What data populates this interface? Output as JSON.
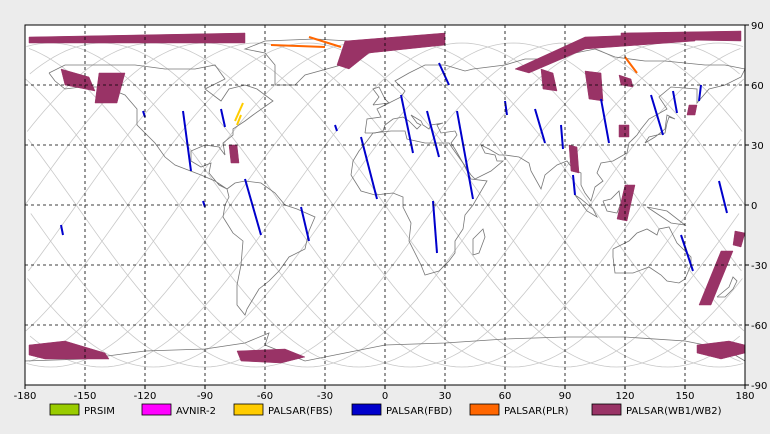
{
  "map": {
    "lon_ticks": [
      "-180",
      "-150",
      "-120",
      "-90",
      "-60",
      "-30",
      "0",
      "30",
      "60",
      "90",
      "120",
      "150",
      "180"
    ],
    "lat_ticks": [
      "90",
      "60",
      "30",
      "0",
      "-30",
      "-60",
      "-90"
    ],
    "background": "#ececec",
    "plot_background": "#ffffff",
    "grid_style": "dashed"
  },
  "legend": [
    {
      "label": "PRSIM",
      "color": "#99cc00"
    },
    {
      "label": "AVNIR-2",
      "color": "#ff00ff"
    },
    {
      "label": "PALSAR(FBS)",
      "color": "#ffcc00"
    },
    {
      "label": "PALSAR(FBD)",
      "color": "#0000cc"
    },
    {
      "label": "PALSAR(PLR)",
      "color": "#ff6600"
    },
    {
      "label": "PALSAR(WB1/WB2)",
      "color": "#993366"
    }
  ],
  "chart_data": {
    "type": "map",
    "x_range": [
      -180,
      180
    ],
    "y_range": [
      -90,
      90
    ],
    "grid": true,
    "footprints": [
      {
        "mode": "PALSAR(WB1/WB2)",
        "points": [
          [
            -178,
            84
          ],
          [
            -70,
            86
          ],
          [
            -70,
            81
          ],
          [
            -178,
            81
          ]
        ]
      },
      {
        "mode": "PALSAR(WB1/WB2)",
        "points": [
          [
            -162,
            68
          ],
          [
            -148,
            64
          ],
          [
            -145,
            57
          ],
          [
            -160,
            60
          ]
        ]
      },
      {
        "mode": "PALSAR(WB1/WB2)",
        "points": [
          [
            -143,
            66
          ],
          [
            -130,
            66
          ],
          [
            -134,
            51
          ],
          [
            -145,
            51
          ]
        ]
      },
      {
        "mode": "PALSAR(WB1/WB2)",
        "points": [
          [
            -20,
            82
          ],
          [
            30,
            86
          ],
          [
            30,
            80
          ],
          [
            -8,
            76
          ],
          [
            -18,
            68
          ],
          [
            -24,
            70
          ]
        ]
      },
      {
        "mode": "PALSAR(WB1/WB2)",
        "points": [
          [
            65,
            68
          ],
          [
            100,
            84
          ],
          [
            155,
            86
          ],
          [
            155,
            82
          ],
          [
            100,
            78
          ],
          [
            72,
            66
          ]
        ]
      },
      {
        "mode": "PALSAR(WB1/WB2)",
        "points": [
          [
            118,
            86
          ],
          [
            178,
            87
          ],
          [
            178,
            82
          ],
          [
            118,
            83
          ]
        ]
      },
      {
        "mode": "PALSAR(WB1/WB2)",
        "points": [
          [
            78,
            68
          ],
          [
            84,
            66
          ],
          [
            86,
            57
          ],
          [
            79,
            58
          ]
        ]
      },
      {
        "mode": "PALSAR(WB1/WB2)",
        "points": [
          [
            100,
            67
          ],
          [
            108,
            66
          ],
          [
            109,
            52
          ],
          [
            102,
            53
          ]
        ]
      },
      {
        "mode": "PALSAR(WB1/WB2)",
        "points": [
          [
            117,
            65
          ],
          [
            123,
            63
          ],
          [
            124,
            59
          ],
          [
            118,
            60
          ]
        ]
      },
      {
        "mode": "PALSAR(WB1/WB2)",
        "points": [
          [
            -78,
            30
          ],
          [
            -74,
            30
          ],
          [
            -73,
            21
          ],
          [
            -77,
            21
          ]
        ]
      },
      {
        "mode": "PALSAR(WB1/WB2)",
        "points": [
          [
            92,
            30
          ],
          [
            96,
            29
          ],
          [
            97,
            16
          ],
          [
            93,
            17
          ]
        ]
      },
      {
        "mode": "PALSAR(WB1/WB2)",
        "points": [
          [
            117,
            40
          ],
          [
            122,
            40
          ],
          [
            122,
            34
          ],
          [
            117,
            34
          ]
        ]
      },
      {
        "mode": "PALSAR(WB1/WB2)",
        "points": [
          [
            120,
            10
          ],
          [
            125,
            10
          ],
          [
            121,
            -8
          ],
          [
            116,
            -7
          ]
        ]
      },
      {
        "mode": "PALSAR(WB1/WB2)",
        "points": [
          [
            168,
            -23
          ],
          [
            174,
            -23
          ],
          [
            163,
            -50
          ],
          [
            157,
            -50
          ]
        ]
      },
      {
        "mode": "PALSAR(WB1/WB2)",
        "points": [
          [
            175,
            -13
          ],
          [
            180,
            -14
          ],
          [
            178,
            -21
          ],
          [
            174,
            -20
          ]
        ]
      },
      {
        "mode": "PALSAR(WB1/WB2)",
        "points": [
          [
            152,
            50
          ],
          [
            156,
            50
          ],
          [
            155,
            45
          ],
          [
            151,
            45
          ]
        ]
      },
      {
        "mode": "PALSAR(WB1/WB2)",
        "points": [
          [
            -178,
            -70
          ],
          [
            -160,
            -68
          ],
          [
            -140,
            -74
          ],
          [
            -138,
            -77
          ],
          [
            -170,
            -77
          ],
          [
            -178,
            -75
          ]
        ]
      },
      {
        "mode": "PALSAR(WB1/WB2)",
        "points": [
          [
            -74,
            -73
          ],
          [
            -50,
            -72
          ],
          [
            -40,
            -76
          ],
          [
            -52,
            -79
          ],
          [
            -72,
            -78
          ]
        ]
      },
      {
        "mode": "PALSAR(WB1/WB2)",
        "points": [
          [
            156,
            -70
          ],
          [
            172,
            -68
          ],
          [
            180,
            -70
          ],
          [
            180,
            -74
          ],
          [
            168,
            -77
          ],
          [
            156,
            -74
          ]
        ]
      },
      {
        "mode": "PALSAR(FBS)",
        "points": [
          [
            -75,
            42
          ],
          [
            -71,
            51
          ]
        ]
      },
      {
        "mode": "PALSAR(FBS)",
        "points": [
          [
            -74,
            40
          ],
          [
            -72,
            45
          ]
        ]
      },
      {
        "mode": "PALSAR(PLR)",
        "points": [
          [
            -57,
            80
          ],
          [
            -30,
            79
          ]
        ]
      },
      {
        "mode": "PALSAR(PLR)",
        "points": [
          [
            -38,
            84
          ],
          [
            -22,
            79
          ]
        ]
      },
      {
        "mode": "PALSAR(PLR)",
        "points": [
          [
            120,
            74
          ],
          [
            126,
            66
          ]
        ]
      },
      {
        "mode": "PALSAR(FBD)",
        "points": [
          [
            -121,
            47
          ],
          [
            -120,
            44
          ]
        ]
      },
      {
        "mode": "PALSAR(FBD)",
        "points": [
          [
            -101,
            47
          ],
          [
            -97,
            17
          ]
        ]
      },
      {
        "mode": "PALSAR(FBD)",
        "points": [
          [
            -82,
            48
          ],
          [
            -80,
            39
          ]
        ]
      },
      {
        "mode": "PALSAR(FBD)",
        "points": [
          [
            -70,
            13
          ],
          [
            -62,
            -15
          ]
        ]
      },
      {
        "mode": "PALSAR(FBD)",
        "points": [
          [
            -42,
            -1
          ],
          [
            -38,
            -18
          ]
        ]
      },
      {
        "mode": "PALSAR(FBD)",
        "points": [
          [
            -162,
            -10
          ],
          [
            -161,
            -15
          ]
        ]
      },
      {
        "mode": "PALSAR(FBD)",
        "points": [
          [
            -91,
            2
          ],
          [
            -90,
            -1
          ]
        ]
      },
      {
        "mode": "PALSAR(FBD)",
        "points": [
          [
            -25,
            40
          ],
          [
            -24,
            37
          ]
        ]
      },
      {
        "mode": "PALSAR(FBD)",
        "points": [
          [
            -12,
            34
          ],
          [
            -4,
            3
          ]
        ]
      },
      {
        "mode": "PALSAR(FBD)",
        "points": [
          [
            8,
            55
          ],
          [
            14,
            26
          ]
        ]
      },
      {
        "mode": "PALSAR(FBD)",
        "points": [
          [
            21,
            47
          ],
          [
            27,
            24
          ]
        ]
      },
      {
        "mode": "PALSAR(FBD)",
        "points": [
          [
            24,
            2
          ],
          [
            26,
            -24
          ]
        ]
      },
      {
        "mode": "PALSAR(FBD)",
        "points": [
          [
            27,
            71
          ],
          [
            32,
            60
          ]
        ]
      },
      {
        "mode": "PALSAR(FBD)",
        "points": [
          [
            36,
            47
          ],
          [
            44,
            3
          ]
        ]
      },
      {
        "mode": "PALSAR(FBD)",
        "points": [
          [
            60,
            52
          ],
          [
            61,
            45
          ]
        ]
      },
      {
        "mode": "PALSAR(FBD)",
        "points": [
          [
            75,
            48
          ],
          [
            80,
            31
          ]
        ]
      },
      {
        "mode": "PALSAR(FBD)",
        "points": [
          [
            88,
            40
          ],
          [
            89,
            28
          ]
        ]
      },
      {
        "mode": "PALSAR(FBD)",
        "points": [
          [
            94,
            15
          ],
          [
            95,
            5
          ]
        ]
      },
      {
        "mode": "PALSAR(FBD)",
        "points": [
          [
            108,
            53
          ],
          [
            112,
            31
          ]
        ]
      },
      {
        "mode": "PALSAR(FBD)",
        "points": [
          [
            133,
            55
          ],
          [
            139,
            35
          ]
        ]
      },
      {
        "mode": "PALSAR(FBD)",
        "points": [
          [
            144,
            57
          ],
          [
            146,
            46
          ]
        ]
      },
      {
        "mode": "PALSAR(FBD)",
        "points": [
          [
            148,
            -15
          ],
          [
            154,
            -33
          ]
        ]
      },
      {
        "mode": "PALSAR(FBD)",
        "points": [
          [
            167,
            12
          ],
          [
            171,
            -4
          ]
        ]
      },
      {
        "mode": "PALSAR(FBD)",
        "points": [
          [
            158,
            60
          ],
          [
            157,
            52
          ]
        ]
      }
    ]
  }
}
